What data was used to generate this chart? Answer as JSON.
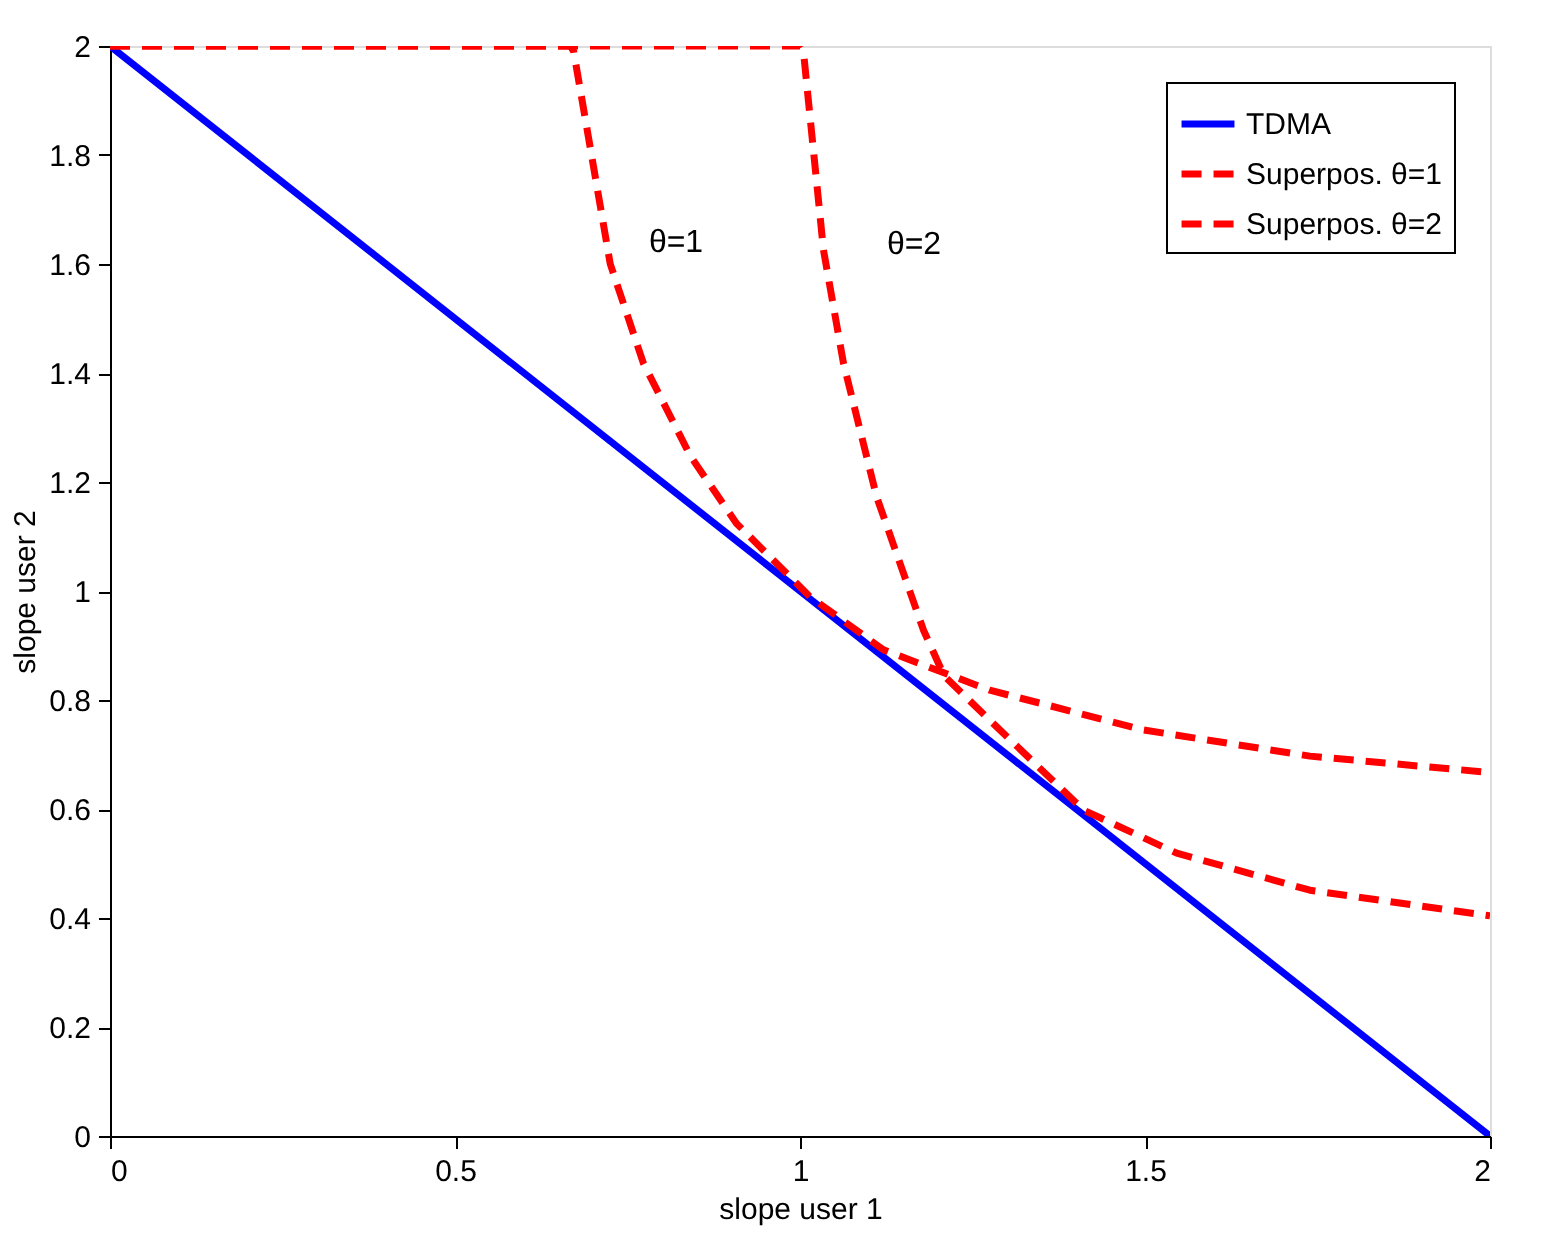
{
  "chart_data": {
    "type": "line",
    "xlabel": "slope user 1",
    "ylabel": "slope user 2",
    "xlim": [
      0,
      2
    ],
    "ylim": [
      0,
      2
    ],
    "xticks": [
      0,
      0.5,
      1,
      1.5,
      2
    ],
    "yticks": [
      0,
      0.2,
      0.4,
      0.6,
      0.8,
      1,
      1.2,
      1.4,
      1.6,
      1.8,
      2
    ],
    "grid": false,
    "legend": "top right",
    "marker": "none",
    "series": [
      {
        "name": "TDMA",
        "color": "#0000ff",
        "line_style": "solid",
        "x": [
          0,
          2
        ],
        "values": [
          2,
          0
        ]
      },
      {
        "name": "Superpos. θ=1",
        "color": "#ff0000",
        "line_style": "dashed",
        "x": [
          0,
          0.667,
          0.672,
          0.725,
          0.773,
          0.841,
          0.908,
          1.014,
          1.121,
          1.275,
          1.498,
          1.739,
          2
        ],
        "values": [
          2,
          2,
          1.99,
          1.6,
          1.418,
          1.248,
          1.124,
          0.99,
          0.892,
          0.818,
          0.745,
          0.697,
          0.667
        ]
      },
      {
        "name": "Superpos. θ=2",
        "color": "#ff0000",
        "line_style": "dashed",
        "x": [
          0,
          1,
          1.005,
          1.034,
          1.063,
          1.111,
          1.179,
          1.209,
          1.275,
          1.411,
          1.546,
          1.739,
          2
        ],
        "values": [
          2,
          2,
          1.99,
          1.626,
          1.418,
          1.173,
          0.928,
          0.844,
          0.763,
          0.598,
          0.519,
          0.451,
          0.404
        ]
      }
    ],
    "annotations": [
      "θ=1",
      "θ=2"
    ]
  }
}
